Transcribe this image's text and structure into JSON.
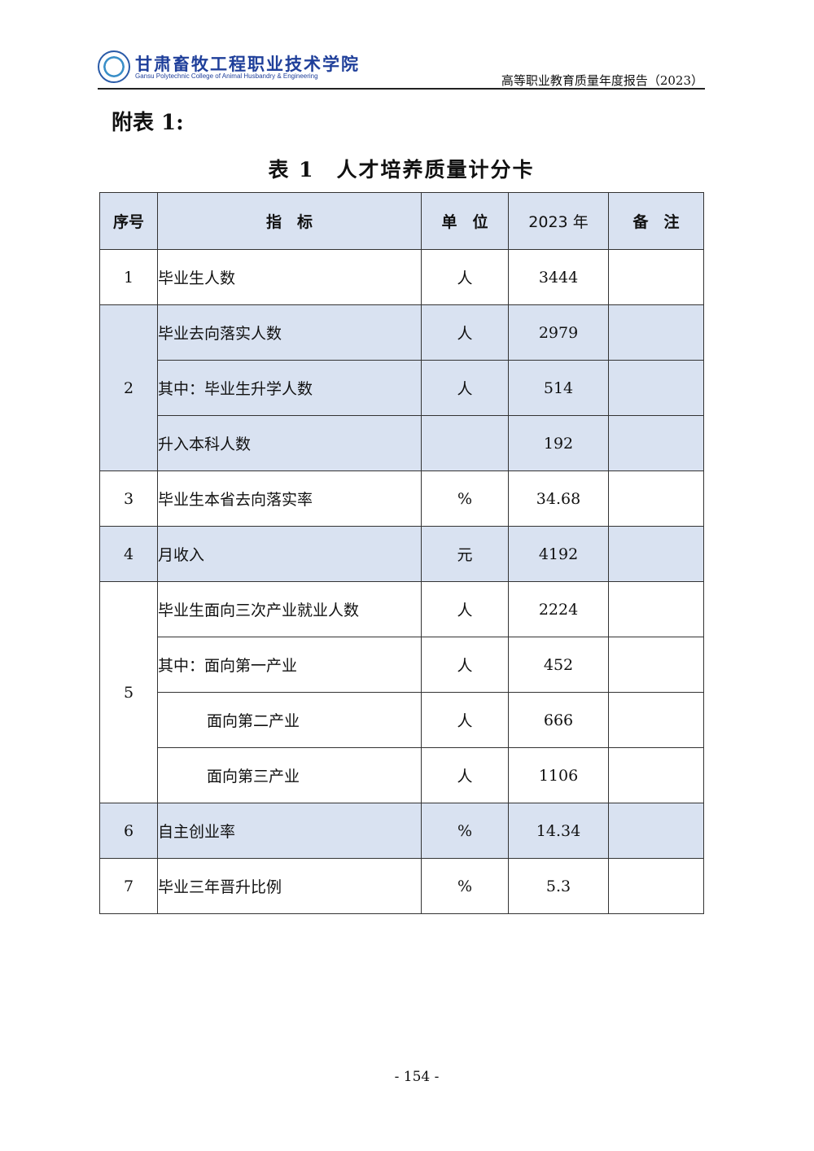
{
  "header": {
    "school_cn": "甘肃畜牧工程职业技术学院",
    "school_en": "Gansu Polytechnic College of Animal Husbandry & Engineering",
    "report": "高等职业教育质量年度报告（2023）"
  },
  "appendix": "附表 1:",
  "title": "表 1　人才培养质量计分卡",
  "columns": [
    "序号",
    "指　标",
    "单　位",
    "2023 年",
    "备　注"
  ],
  "rows": [
    {
      "no": "1",
      "name": "毕业生人数",
      "unit": "人",
      "value": "3444",
      "note": ""
    },
    {
      "no": "2",
      "name": "毕业去向落实人数",
      "unit": "人",
      "value": "2979",
      "note": ""
    },
    {
      "no": "",
      "name": "其中：毕业生升学人数",
      "unit": "人",
      "value": "514",
      "note": ""
    },
    {
      "no": "",
      "name": "升入本科人数",
      "unit": "",
      "value": "192",
      "note": ""
    },
    {
      "no": "3",
      "name": "毕业生本省去向落实率",
      "unit": "%",
      "value": "34.68",
      "note": ""
    },
    {
      "no": "4",
      "name": "月收入",
      "unit": "元",
      "value": "4192",
      "note": ""
    },
    {
      "no": "5",
      "name": "毕业生面向三次产业就业人数",
      "unit": "人",
      "value": "2224",
      "note": ""
    },
    {
      "no": "",
      "name": "其中：面向第一产业",
      "unit": "人",
      "value": "452",
      "note": ""
    },
    {
      "no": "",
      "name": "面向第二产业",
      "unit": "人",
      "value": "666",
      "note": ""
    },
    {
      "no": "",
      "name": "面向第三产业",
      "unit": "人",
      "value": "1106",
      "note": ""
    },
    {
      "no": "6",
      "name": "自主创业率",
      "unit": "%",
      "value": "14.34",
      "note": ""
    },
    {
      "no": "7",
      "name": "毕业三年晋升比例",
      "unit": "%",
      "value": "5.3",
      "note": ""
    }
  ],
  "page_number": "- 154 -",
  "colors": {
    "shade": "#d9e2f1",
    "brand": "#1f3f9a"
  }
}
